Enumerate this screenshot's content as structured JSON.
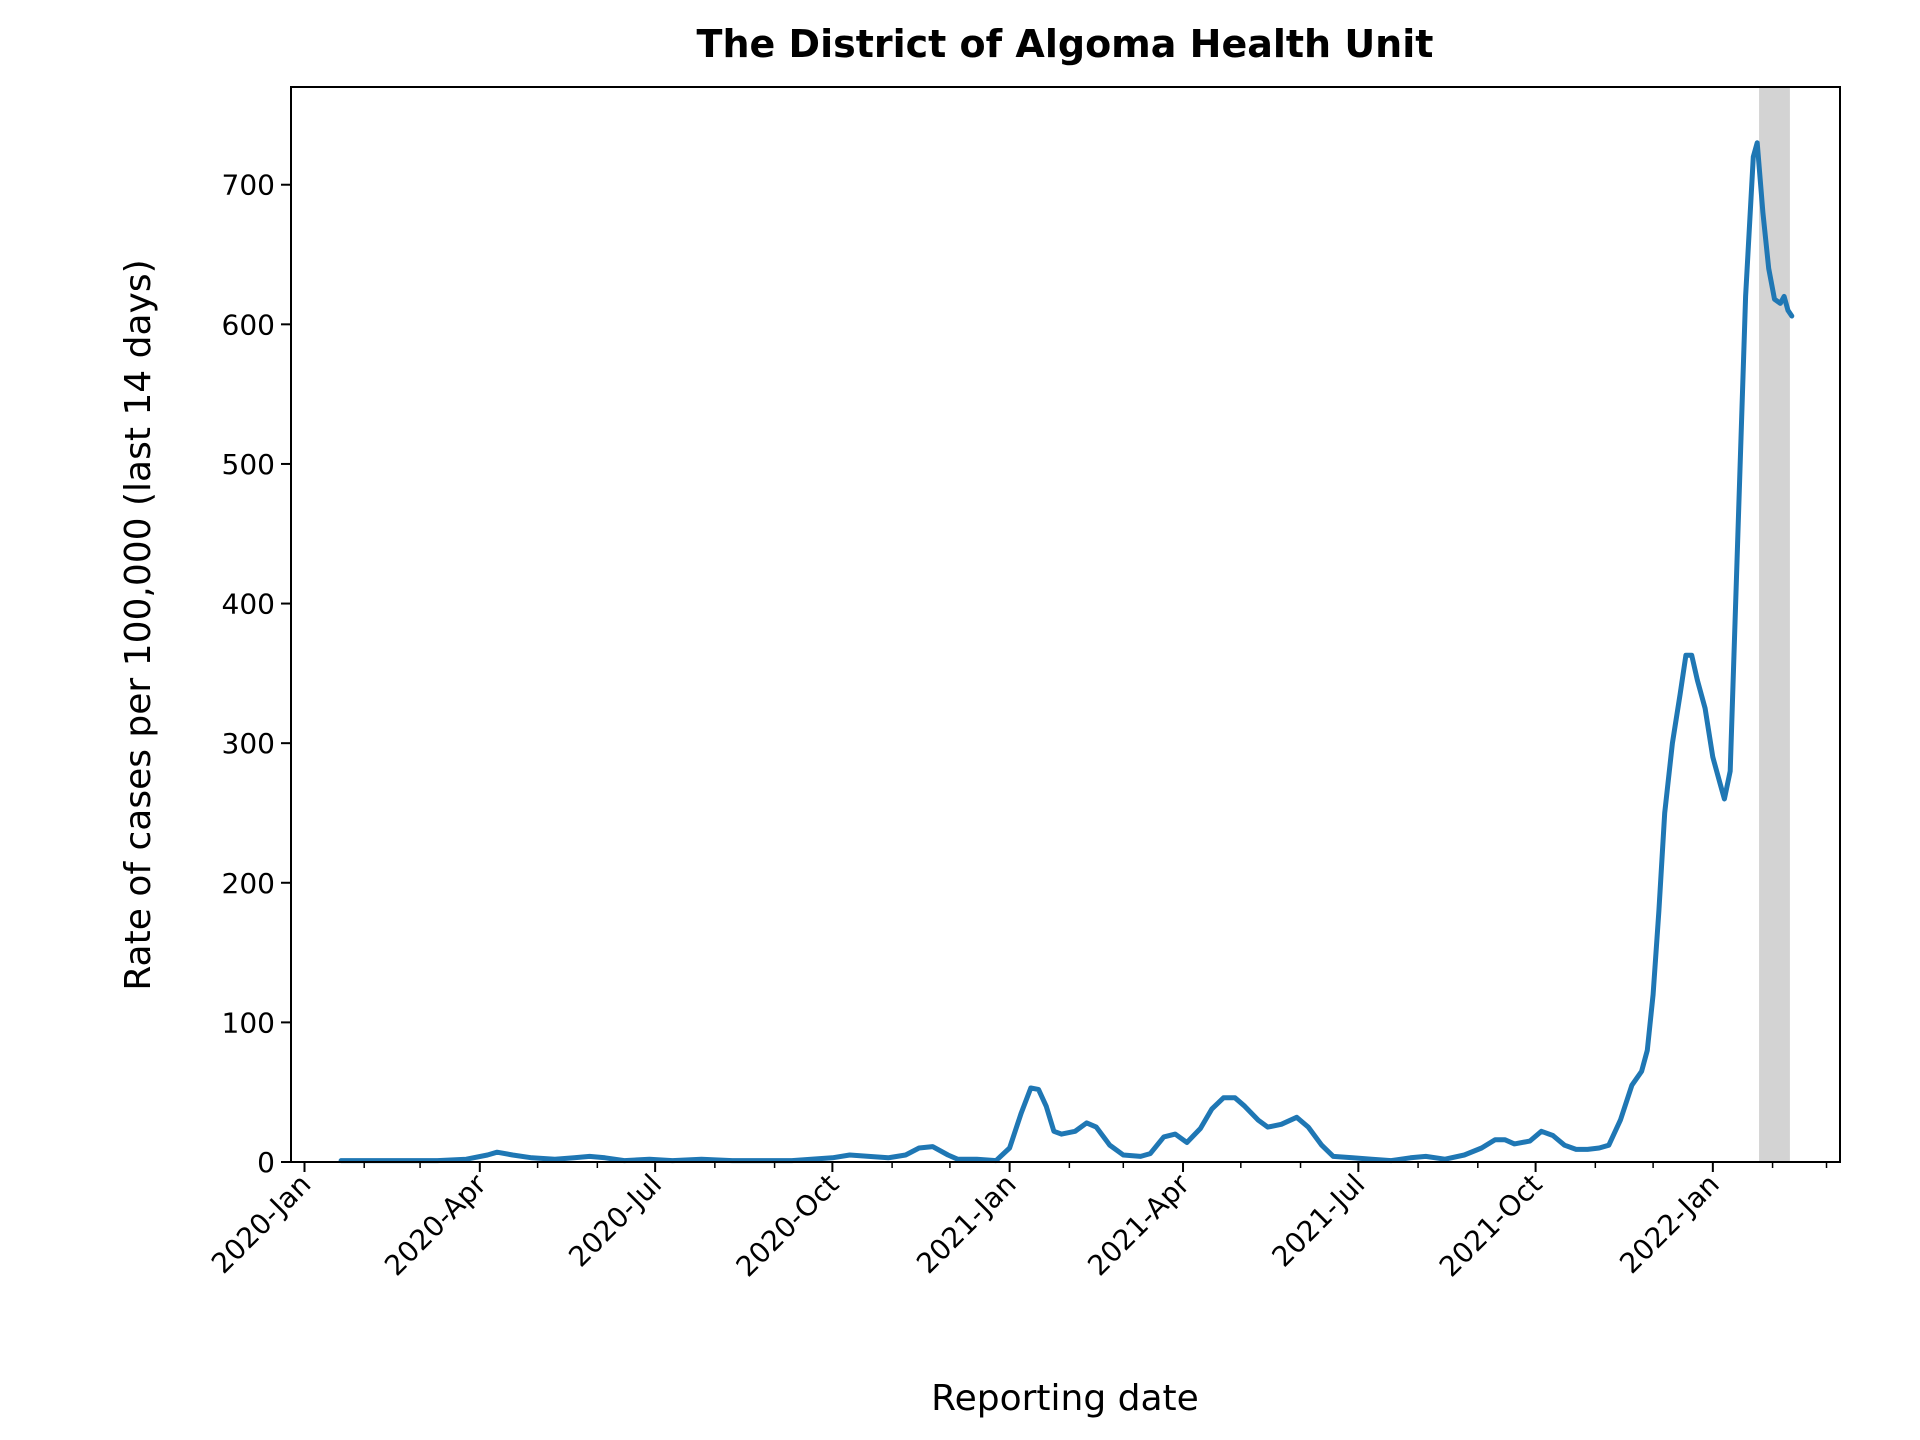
{
  "chart_data": {
    "type": "line",
    "title": "The District of Algoma Health Unit",
    "xlabel": "Reporting date",
    "ylabel": "Rate of cases per 100,000 (last 14 days)",
    "x_tick_labels": [
      "2020-Jan",
      "2020-Apr",
      "2020-Jul",
      "2020-Oct",
      "2021-Jan",
      "2021-Apr",
      "2021-Jul",
      "2021-Oct",
      "2022-Jan"
    ],
    "y_tick_labels": [
      "0",
      "100",
      "200",
      "300",
      "400",
      "500",
      "600",
      "700"
    ],
    "xlim": [
      "2019-12-25",
      "2022-03-08"
    ],
    "ylim": [
      0,
      770
    ],
    "grid": false,
    "shaded_region": {
      "x_start": "2022-01-25",
      "x_end": "2022-02-10",
      "color": "#d3d3d3"
    },
    "series": [
      {
        "color": "#1f77b4",
        "points": [
          [
            "2020-01-20",
            1
          ],
          [
            "2020-02-15",
            1
          ],
          [
            "2020-03-10",
            1
          ],
          [
            "2020-03-25",
            2
          ],
          [
            "2020-04-05",
            5
          ],
          [
            "2020-04-10",
            7
          ],
          [
            "2020-04-18",
            5
          ],
          [
            "2020-04-28",
            3
          ],
          [
            "2020-05-10",
            2
          ],
          [
            "2020-05-20",
            3
          ],
          [
            "2020-05-28",
            4
          ],
          [
            "2020-06-05",
            3
          ],
          [
            "2020-06-15",
            1
          ],
          [
            "2020-06-28",
            2
          ],
          [
            "2020-07-10",
            1
          ],
          [
            "2020-07-25",
            2
          ],
          [
            "2020-08-10",
            1
          ],
          [
            "2020-08-25",
            1
          ],
          [
            "2020-09-10",
            1
          ],
          [
            "2020-09-20",
            2
          ],
          [
            "2020-10-01",
            3
          ],
          [
            "2020-10-10",
            5
          ],
          [
            "2020-10-20",
            4
          ],
          [
            "2020-10-30",
            3
          ],
          [
            "2020-11-08",
            5
          ],
          [
            "2020-11-15",
            10
          ],
          [
            "2020-11-22",
            11
          ],
          [
            "2020-11-30",
            5
          ],
          [
            "2020-12-05",
            2
          ],
          [
            "2020-12-15",
            2
          ],
          [
            "2020-12-25",
            1
          ],
          [
            "2021-01-01",
            10
          ],
          [
            "2021-01-07",
            35
          ],
          [
            "2021-01-12",
            53
          ],
          [
            "2021-01-16",
            52
          ],
          [
            "2021-01-20",
            40
          ],
          [
            "2021-01-24",
            22
          ],
          [
            "2021-01-28",
            20
          ],
          [
            "2021-02-04",
            22
          ],
          [
            "2021-02-10",
            28
          ],
          [
            "2021-02-15",
            25
          ],
          [
            "2021-02-22",
            12
          ],
          [
            "2021-03-01",
            5
          ],
          [
            "2021-03-10",
            4
          ],
          [
            "2021-03-15",
            6
          ],
          [
            "2021-03-22",
            18
          ],
          [
            "2021-03-28",
            20
          ],
          [
            "2021-04-03",
            14
          ],
          [
            "2021-04-10",
            24
          ],
          [
            "2021-04-16",
            38
          ],
          [
            "2021-04-22",
            46
          ],
          [
            "2021-04-28",
            46
          ],
          [
            "2021-05-03",
            40
          ],
          [
            "2021-05-10",
            30
          ],
          [
            "2021-05-15",
            25
          ],
          [
            "2021-05-22",
            27
          ],
          [
            "2021-05-30",
            32
          ],
          [
            "2021-06-05",
            25
          ],
          [
            "2021-06-12",
            12
          ],
          [
            "2021-06-18",
            4
          ],
          [
            "2021-06-28",
            3
          ],
          [
            "2021-07-08",
            2
          ],
          [
            "2021-07-18",
            1
          ],
          [
            "2021-07-28",
            3
          ],
          [
            "2021-08-05",
            4
          ],
          [
            "2021-08-15",
            2
          ],
          [
            "2021-08-25",
            5
          ],
          [
            "2021-09-03",
            10
          ],
          [
            "2021-09-10",
            16
          ],
          [
            "2021-09-15",
            16
          ],
          [
            "2021-09-20",
            13
          ],
          [
            "2021-09-28",
            15
          ],
          [
            "2021-10-04",
            22
          ],
          [
            "2021-10-10",
            19
          ],
          [
            "2021-10-16",
            12
          ],
          [
            "2021-10-22",
            9
          ],
          [
            "2021-10-28",
            9
          ],
          [
            "2021-11-03",
            10
          ],
          [
            "2021-11-08",
            12
          ],
          [
            "2021-11-14",
            30
          ],
          [
            "2021-11-20",
            55
          ],
          [
            "2021-11-25",
            65
          ],
          [
            "2021-11-28",
            80
          ],
          [
            "2021-12-01",
            120
          ],
          [
            "2021-12-04",
            180
          ],
          [
            "2021-12-07",
            250
          ],
          [
            "2021-12-11",
            300
          ],
          [
            "2021-12-15",
            335
          ],
          [
            "2021-12-18",
            363
          ],
          [
            "2021-12-21",
            363
          ],
          [
            "2021-12-24",
            345
          ],
          [
            "2021-12-28",
            325
          ],
          [
            "2022-01-01",
            290
          ],
          [
            "2022-01-05",
            270
          ],
          [
            "2022-01-07",
            260
          ],
          [
            "2022-01-10",
            280
          ],
          [
            "2022-01-14",
            450
          ],
          [
            "2022-01-18",
            620
          ],
          [
            "2022-01-22",
            720
          ],
          [
            "2022-01-24",
            730
          ],
          [
            "2022-01-27",
            680
          ],
          [
            "2022-01-30",
            640
          ],
          [
            "2022-02-02",
            618
          ],
          [
            "2022-02-05",
            615
          ],
          [
            "2022-02-07",
            620
          ],
          [
            "2022-02-09",
            610
          ],
          [
            "2022-02-11",
            606
          ]
        ]
      }
    ]
  }
}
